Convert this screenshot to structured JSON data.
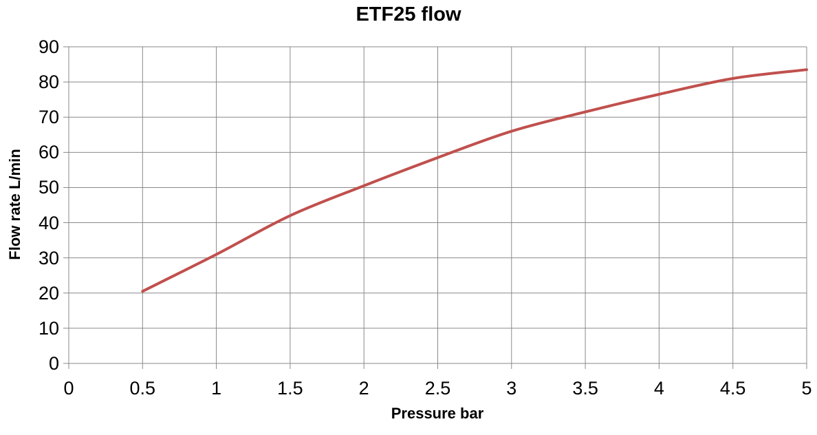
{
  "chart_data": {
    "type": "line",
    "title": "ETF25 flow",
    "xlabel": "Pressure bar",
    "ylabel": "Flow rate L/min",
    "xlim": [
      0,
      5
    ],
    "ylim": [
      0,
      90
    ],
    "x_ticks": [
      0,
      0.5,
      1,
      1.5,
      2,
      2.5,
      3,
      3.5,
      4,
      4.5,
      5
    ],
    "x_tick_labels": [
      "0",
      "0.5",
      "1",
      "1.5",
      "2",
      "2.5",
      "3",
      "3.5",
      "4",
      "4.5",
      "5"
    ],
    "y_ticks": [
      0,
      10,
      20,
      30,
      40,
      50,
      60,
      70,
      80,
      90
    ],
    "y_tick_labels": [
      "0",
      "10",
      "20",
      "30",
      "40",
      "50",
      "60",
      "70",
      "80",
      "90"
    ],
    "grid": true,
    "legend": false,
    "series": [
      {
        "name": "ETF25 flow",
        "x": [
          0.5,
          1,
          1.5,
          2,
          2.5,
          3,
          3.5,
          4,
          4.5,
          5
        ],
        "y": [
          20.5,
          31,
          42,
          50.5,
          58.5,
          66,
          71.5,
          76.5,
          81,
          83.5
        ],
        "smooth": true
      }
    ],
    "colors": {
      "line": "#C0504D",
      "gridline": "#898989",
      "text": "#000000",
      "background": "#FFFFFF"
    },
    "line_width": 4
  }
}
